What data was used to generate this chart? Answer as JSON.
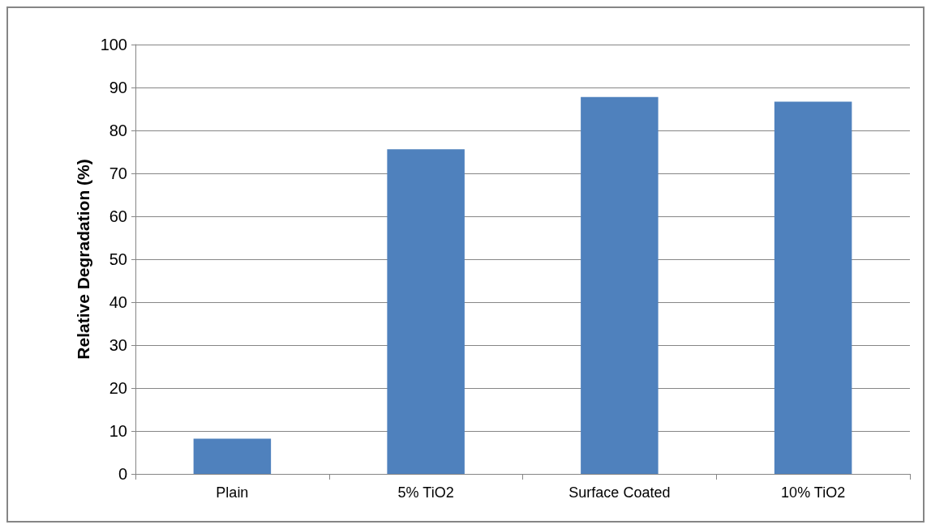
{
  "chart_data": {
    "type": "bar",
    "ylabel": "Relative Degradation (%)",
    "categories": [
      "Plain",
      "5% TiO2",
      "Surface Coated",
      "10% TiO2"
    ],
    "values": [
      8.2,
      75.6,
      87.8,
      86.7
    ],
    "color": "#4f81bd",
    "ylim": [
      0,
      100
    ],
    "yticks": [
      0,
      10,
      20,
      30,
      40,
      50,
      60,
      70,
      80,
      90,
      100
    ],
    "grid": "y"
  }
}
